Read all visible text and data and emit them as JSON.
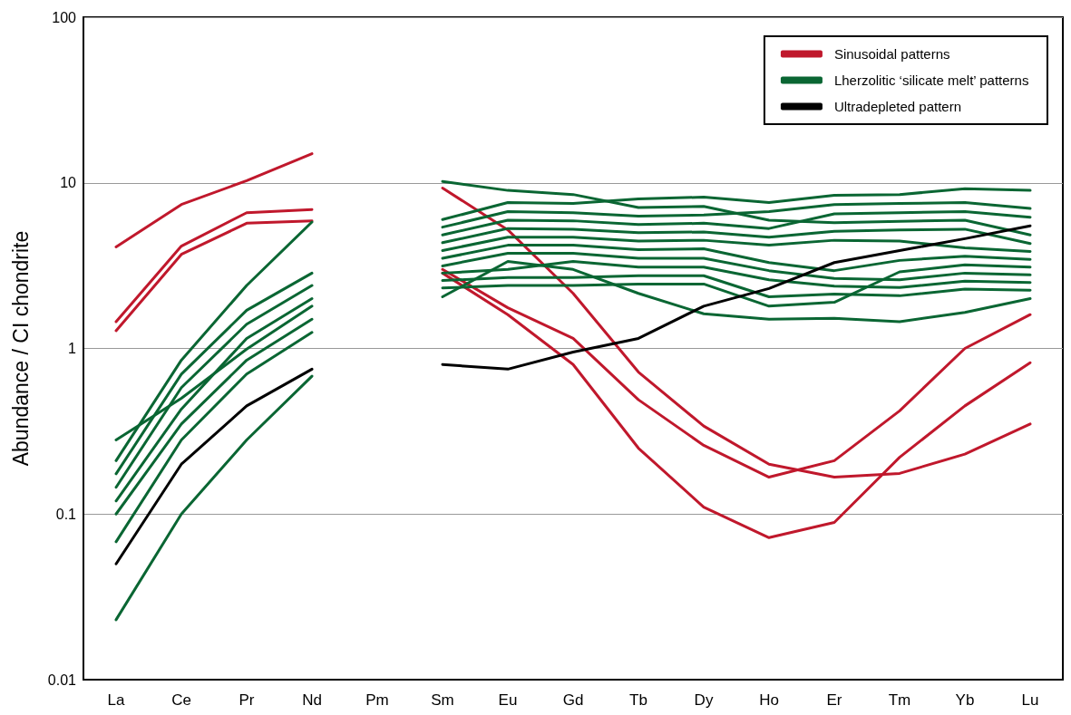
{
  "chart_data": {
    "type": "line",
    "ylabel": "Abundance / CI chondrite",
    "categories": [
      "La",
      "Ce",
      "Pr",
      "Nd",
      "Pm",
      "Sm",
      "Eu",
      "Gd",
      "Tb",
      "Dy",
      "Ho",
      "Er",
      "Tm",
      "Yb",
      "Lu"
    ],
    "log": "y",
    "ylim": [
      0.01,
      100
    ],
    "yticks": [
      0.01,
      0.1,
      1,
      10,
      100
    ],
    "grid": "y",
    "legend": "top right",
    "marker": "none",
    "line_style": "solid",
    "series": [
      {
        "name": "Sinusoidal patterns",
        "color": "#c0182c",
        "values": [
          4.1,
          7.4,
          10.3,
          15,
          null,
          9.3,
          5.2,
          2.15,
          0.72,
          0.34,
          0.2,
          0.167,
          0.176,
          0.23,
          0.35
        ]
      },
      {
        "color": "#c0182c",
        "values": [
          1.45,
          4.15,
          6.6,
          6.9,
          null,
          3,
          1.76,
          1.15,
          0.49,
          0.26,
          0.167,
          0.21,
          0.42,
          1,
          1.6
        ]
      },
      {
        "color": "#c0182c",
        "values": [
          1.28,
          3.7,
          5.7,
          5.9,
          null,
          2.85,
          1.6,
          0.8,
          0.25,
          0.11,
          0.072,
          0.089,
          0.22,
          0.45,
          0.82
        ]
      },
      {
        "name": "Lherzolitic ‘silicate melt’ patterns",
        "color": "#0a6633",
        "values": [
          0.21,
          0.85,
          2.4,
          5.8,
          null,
          10.2,
          9,
          8.5,
          7.1,
          7.2,
          5.95,
          5.75,
          5.85,
          5.95,
          4.85
        ]
      },
      {
        "color": "#0a6633",
        "values": [
          0.023,
          0.1,
          0.28,
          0.68,
          null,
          2.05,
          3.35,
          3,
          2.15,
          1.62,
          1.5,
          1.52,
          1.45,
          1.65,
          2
        ]
      },
      {
        "color": "#0a6633",
        "values": [
          0.28,
          0.5,
          0.99,
          1.8,
          null,
          6,
          7.6,
          7.5,
          8,
          8.2,
          7.6,
          8.4,
          8.5,
          9.2,
          9
        ]
      },
      {
        "color": "#0a6633",
        "values": [
          0.175,
          0.7,
          1.7,
          2.85,
          null,
          5.4,
          6.7,
          6.6,
          6.3,
          6.4,
          6.7,
          7.4,
          7.5,
          7.6,
          7
        ]
      },
      {
        "color": "#0a6633",
        "values": [
          0.145,
          0.58,
          1.4,
          2.4,
          null,
          4.85,
          5.95,
          5.9,
          5.6,
          5.7,
          5.3,
          6.5,
          6.6,
          6.7,
          6.2
        ]
      },
      {
        "color": "#0a6633",
        "values": [
          0.12,
          0.43,
          1.15,
          2,
          null,
          4.35,
          5.3,
          5.25,
          5,
          5.05,
          4.7,
          5.1,
          5.2,
          5.25,
          4.3
        ]
      },
      {
        "color": "#0a6633",
        "values": [
          null,
          null,
          null,
          null,
          null,
          3.9,
          4.7,
          4.7,
          4.45,
          4.5,
          4.2,
          4.5,
          4.45,
          4.05,
          3.85
        ]
      },
      {
        "color": "#0a6633",
        "values": [
          0.1,
          0.35,
          0.85,
          1.5,
          null,
          3.5,
          4.2,
          4.2,
          3.95,
          4,
          3.3,
          2.95,
          3.4,
          3.6,
          3.45
        ]
      },
      {
        "color": "#0a6633",
        "values": [
          null,
          null,
          null,
          null,
          null,
          3.15,
          3.75,
          3.75,
          3.5,
          3.5,
          2.95,
          2.65,
          2.6,
          2.85,
          2.78
        ]
      },
      {
        "color": "#0a6633",
        "values": [
          null,
          null,
          null,
          null,
          null,
          2.85,
          3,
          3.35,
          3.1,
          3.1,
          2.6,
          2.38,
          2.33,
          2.55,
          2.5
        ]
      },
      {
        "color": "#0a6633",
        "values": [
          null,
          null,
          null,
          null,
          null,
          2.57,
          2.68,
          2.68,
          2.75,
          2.75,
          2.05,
          2.13,
          2.08,
          2.28,
          2.25
        ]
      },
      {
        "color": "#0a6633",
        "values": [
          0.068,
          0.28,
          0.7,
          1.25,
          null,
          2.32,
          2.4,
          2.4,
          2.45,
          2.45,
          1.8,
          1.9,
          2.9,
          3.2,
          3.1
        ]
      },
      {
        "name": "Ultradepleted pattern",
        "color": "#000000",
        "values": [
          0.05,
          0.2,
          0.45,
          0.75,
          null,
          0.8,
          0.75,
          0.95,
          1.15,
          1.8,
          2.3,
          3.3,
          3.9,
          4.6,
          5.5
        ]
      }
    ]
  }
}
